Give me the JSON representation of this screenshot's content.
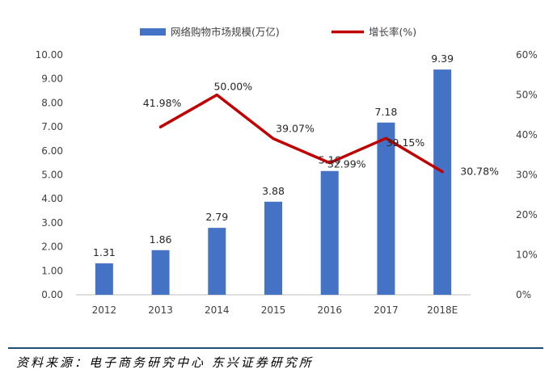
{
  "chart_data": {
    "type": "bar",
    "categories": [
      "2012",
      "2013",
      "2014",
      "2015",
      "2016",
      "2017",
      "2018E"
    ],
    "series": [
      {
        "name": "网络购物市场规模(万亿)",
        "type": "bar",
        "axis": "left",
        "color": "#4472c4",
        "values": [
          1.31,
          1.86,
          2.79,
          3.88,
          5.16,
          7.18,
          9.39
        ],
        "labels": [
          "1.31",
          "1.86",
          "2.79",
          "3.88",
          "5.16",
          "7.18",
          "9.39"
        ]
      },
      {
        "name": "增长率(%)",
        "type": "line",
        "axis": "right",
        "color": "#c00000",
        "values": [
          null,
          41.98,
          50.0,
          39.07,
          32.99,
          39.15,
          30.78
        ],
        "labels": [
          "",
          "41.98%",
          "50.00%",
          "39.07%",
          "32.99%",
          "39.15%",
          "30.78%"
        ]
      }
    ],
    "y_left": {
      "ylim": [
        0,
        10
      ],
      "ticks": [
        "0.00",
        "1.00",
        "2.00",
        "3.00",
        "4.00",
        "5.00",
        "6.00",
        "7.00",
        "8.00",
        "9.00",
        "10.00"
      ]
    },
    "y_right": {
      "ylim": [
        0,
        60
      ],
      "ticks": [
        "0%",
        "10%",
        "20%",
        "30%",
        "40%",
        "50%",
        "60%"
      ]
    },
    "grid": false,
    "legend": "top"
  },
  "source_note": "资料来源：电子商务研究中心 东兴证券研究所"
}
